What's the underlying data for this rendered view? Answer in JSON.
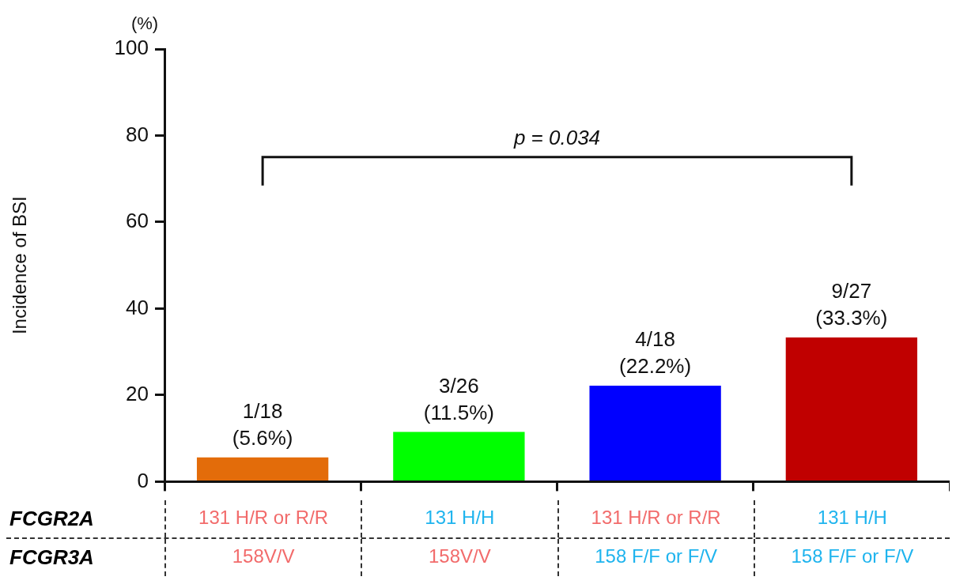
{
  "chart_data": {
    "type": "bar",
    "ylabel": "Incidence of BSI",
    "categories": [
      "131 H/R or R/R",
      "131 H/H",
      "131 H/R or R/R",
      "131 H/H"
    ],
    "values": [
      5.6,
      11.5,
      22.2,
      33.3
    ],
    "colors": [
      "#e36c0a",
      "#00ff00",
      "#0000ff",
      "#c00000"
    ],
    "value_labels": [
      "1/18 (5.6%)",
      "3/26 (11.5%)",
      "4/18 (22.2%)",
      "9/27 (33.3%)"
    ],
    "ylim": [
      0,
      100
    ],
    "yticks": [
      0,
      20,
      40,
      60,
      80,
      100
    ],
    "grid": false,
    "legend": false,
    "annotations": [
      "p = 0.034",
      "(%)",
      "FCGR2A",
      "FCGR3A",
      "158V/V",
      "158V/V",
      "158 F/F or F/V",
      "158 F/F or F/V"
    ]
  }
}
